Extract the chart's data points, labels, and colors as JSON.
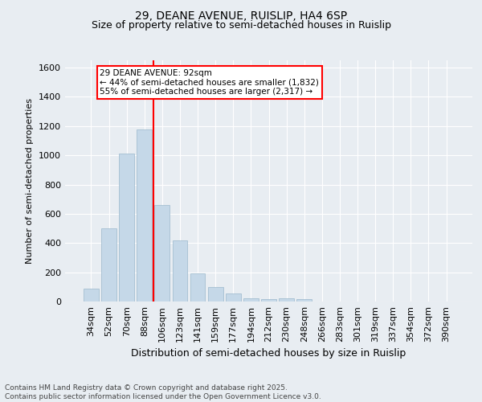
{
  "title1": "29, DEANE AVENUE, RUISLIP, HA4 6SP",
  "title2": "Size of property relative to semi-detached houses in Ruislip",
  "xlabel": "Distribution of semi-detached houses by size in Ruislip",
  "ylabel": "Number of semi-detached properties",
  "categories": [
    "34sqm",
    "52sqm",
    "70sqm",
    "88sqm",
    "106sqm",
    "123sqm",
    "141sqm",
    "159sqm",
    "177sqm",
    "194sqm",
    "212sqm",
    "230sqm",
    "248sqm",
    "266sqm",
    "283sqm",
    "301sqm",
    "319sqm",
    "337sqm",
    "354sqm",
    "372sqm",
    "390sqm"
  ],
  "values": [
    90,
    500,
    1010,
    1175,
    660,
    420,
    195,
    100,
    55,
    20,
    15,
    20,
    18,
    0,
    0,
    0,
    0,
    0,
    0,
    0,
    0
  ],
  "bar_color": "#c5d8e8",
  "bar_edgecolor": "#9ab8cc",
  "vline_color": "red",
  "vline_x_index": 3,
  "annotation_text": "29 DEANE AVENUE: 92sqm\n← 44% of semi-detached houses are smaller (1,832)\n55% of semi-detached houses are larger (2,317) →",
  "annotation_box_facecolor": "white",
  "annotation_box_edgecolor": "red",
  "ylim": [
    0,
    1650
  ],
  "yticks": [
    0,
    200,
    400,
    600,
    800,
    1000,
    1200,
    1400,
    1600
  ],
  "footer": "Contains HM Land Registry data © Crown copyright and database right 2025.\nContains public sector information licensed under the Open Government Licence v3.0.",
  "bg_color": "#e8edf2",
  "plot_bg_color": "#e8edf2",
  "grid_color": "white",
  "title1_fontsize": 10,
  "title2_fontsize": 9,
  "ylabel_fontsize": 8,
  "xlabel_fontsize": 9,
  "tick_fontsize": 8,
  "footer_fontsize": 6.5
}
